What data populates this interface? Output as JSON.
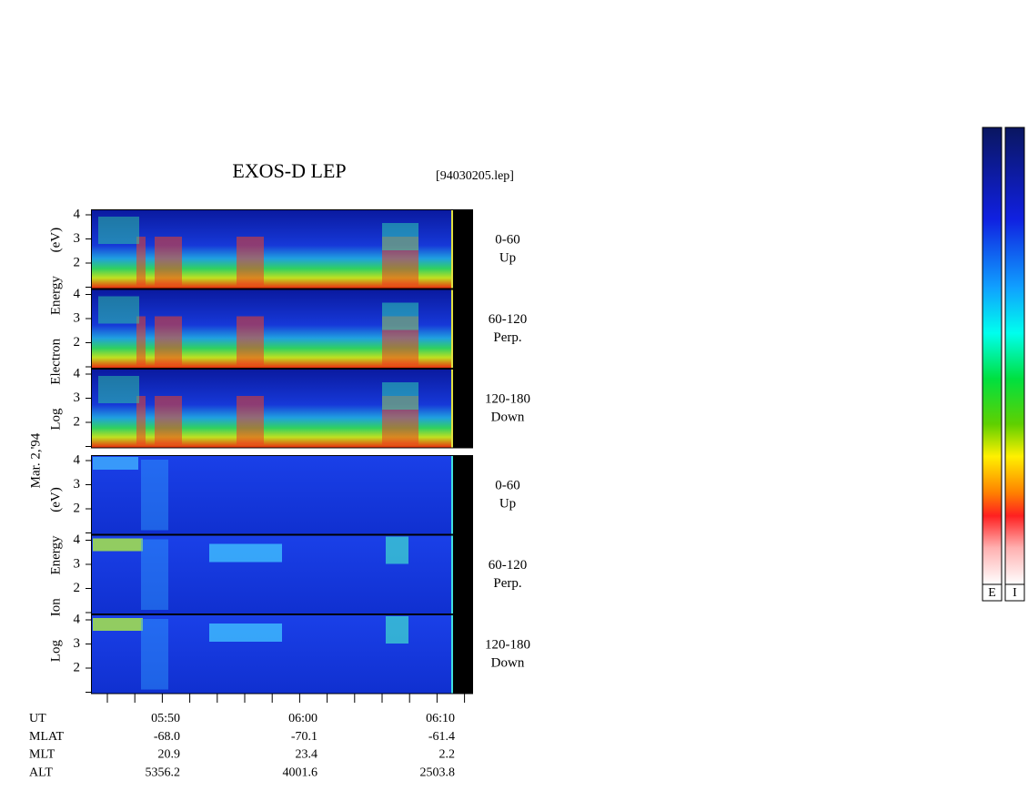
{
  "header": {
    "title": "EXOS-D LEP",
    "file": "[94030205.lep]"
  },
  "date": "Mar. 2,'94",
  "panels": [
    {
      "species": "Log Electron Energy (eV)",
      "subpanels": [
        {
          "angle": "0-60",
          "direction": "Up",
          "yticks": [
            "4",
            "3",
            "2"
          ]
        },
        {
          "angle": "60-120",
          "direction": "Perp.",
          "yticks": [
            "4",
            "3",
            "2"
          ]
        },
        {
          "angle": "120-180",
          "direction": "Down",
          "yticks": [
            "4",
            "3",
            "2"
          ]
        }
      ]
    },
    {
      "species": "Log Ion Energy (eV)",
      "subpanels": [
        {
          "angle": "0-60",
          "direction": "Up",
          "yticks": [
            "4",
            "3",
            "2"
          ]
        },
        {
          "angle": "60-120",
          "direction": "Perp.",
          "yticks": [
            "4",
            "3",
            "2"
          ]
        },
        {
          "angle": "120-180",
          "direction": "Down",
          "yticks": [
            "4",
            "3",
            "2"
          ]
        }
      ]
    }
  ],
  "orbit_table": {
    "rows": [
      [
        "UT",
        "05:50",
        "06:00",
        "06:10"
      ],
      [
        "MLAT",
        "-68.0",
        "-70.1",
        "-61.4"
      ],
      [
        "MLT",
        "20.9",
        "23.4",
        "2.2"
      ],
      [
        "ALT",
        "5356.2",
        "4001.6",
        "2503.8"
      ]
    ]
  },
  "colorbars": [
    "E",
    "I"
  ]
}
